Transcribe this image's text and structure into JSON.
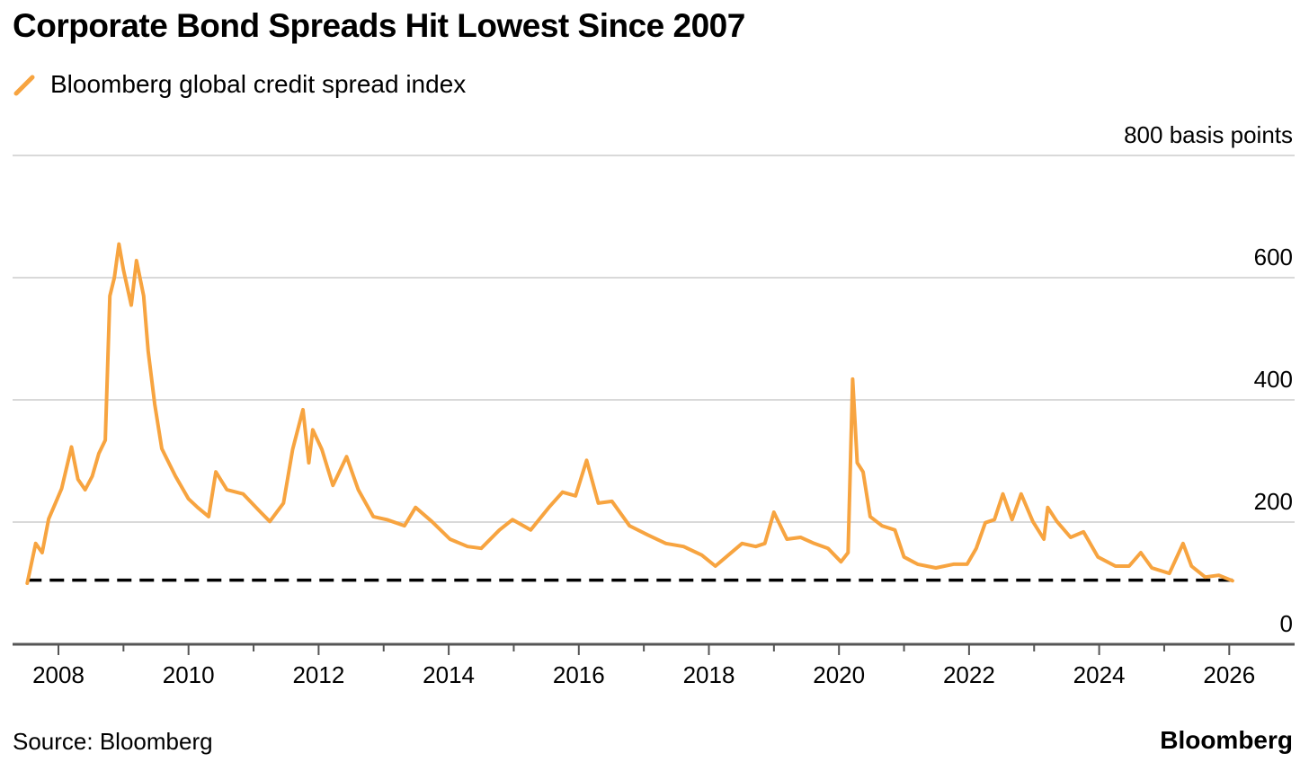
{
  "chart_data": {
    "type": "line",
    "title": "Corporate Bond Spreads Hit Lowest Since 2007",
    "xlabel": "",
    "ylabel": "basis points",
    "ylim": [
      0,
      800
    ],
    "xlim": [
      2007.4,
      2026.8
    ],
    "y_ticks": [
      {
        "value": 0,
        "label": "0"
      },
      {
        "value": 200,
        "label": "200"
      },
      {
        "value": 400,
        "label": "400"
      },
      {
        "value": 600,
        "label": "600"
      },
      {
        "value": 800,
        "label": "800 basis points"
      }
    ],
    "x_ticks": [
      {
        "value": 2008,
        "label": "2008"
      },
      {
        "value": 2010,
        "label": "2010"
      },
      {
        "value": 2012,
        "label": "2012"
      },
      {
        "value": 2014,
        "label": "2014"
      },
      {
        "value": 2016,
        "label": "2016"
      },
      {
        "value": 2018,
        "label": "2018"
      },
      {
        "value": 2020,
        "label": "2020"
      },
      {
        "value": 2022,
        "label": "2022"
      },
      {
        "value": 2024,
        "label": "2024"
      },
      {
        "value": 2026,
        "label": "2026"
      }
    ],
    "grid": true,
    "legend_position": "top-left",
    "reference_line": {
      "value": 105,
      "style": "dashed",
      "color": "#000000"
    },
    "series": [
      {
        "name": "Bloomberg global credit spread index",
        "color": "#F7A440",
        "x": [
          2007.52,
          2007.65,
          2007.75,
          2007.85,
          2007.95,
          2008.05,
          2008.2,
          2008.3,
          2008.41,
          2008.52,
          2008.62,
          2008.72,
          2008.79,
          2008.86,
          2008.93,
          2009.0,
          2009.12,
          2009.2,
          2009.31,
          2009.38,
          2009.48,
          2009.59,
          2009.8,
          2010.0,
          2010.14,
          2010.31,
          2010.42,
          2010.59,
          2010.84,
          2011.11,
          2011.25,
          2011.46,
          2011.6,
          2011.76,
          2011.85,
          2011.91,
          2012.05,
          2012.22,
          2012.43,
          2012.61,
          2012.84,
          2013.05,
          2013.32,
          2013.49,
          2013.74,
          2014.02,
          2014.29,
          2014.5,
          2014.78,
          2014.98,
          2015.26,
          2015.54,
          2015.75,
          2015.95,
          2016.12,
          2016.3,
          2016.51,
          2016.78,
          2017.06,
          2017.34,
          2017.61,
          2017.89,
          2018.1,
          2018.3,
          2018.51,
          2018.72,
          2018.86,
          2019.0,
          2019.2,
          2019.41,
          2019.62,
          2019.83,
          2020.03,
          2020.14,
          2020.21,
          2020.28,
          2020.37,
          2020.48,
          2020.66,
          2020.86,
          2021.0,
          2021.21,
          2021.49,
          2021.76,
          2021.97,
          2022.11,
          2022.25,
          2022.39,
          2022.52,
          2022.66,
          2022.8,
          2022.98,
          2023.15,
          2023.21,
          2023.35,
          2023.56,
          2023.76,
          2023.98,
          2024.25,
          2024.46,
          2024.64,
          2024.81,
          2025.08,
          2025.29,
          2025.42,
          2025.63,
          2025.84,
          2026.05
        ],
        "values": [
          100,
          165,
          150,
          205,
          230,
          255,
          323,
          270,
          253,
          275,
          312,
          334,
          570,
          600,
          655,
          613,
          555,
          628,
          570,
          480,
          393,
          320,
          275,
          238,
          224,
          209,
          282,
          253,
          246,
          216,
          201,
          231,
          319,
          384,
          297,
          351,
          319,
          260,
          307,
          253,
          209,
          204,
          194,
          224,
          201,
          172,
          160,
          157,
          187,
          204,
          187,
          224,
          249,
          243,
          301,
          231,
          234,
          194,
          179,
          165,
          160,
          146,
          128,
          146,
          165,
          160,
          165,
          216,
          172,
          175,
          165,
          157,
          135,
          150,
          434,
          297,
          282,
          209,
          194,
          187,
          143,
          131,
          125,
          131,
          131,
          157,
          199,
          204,
          246,
          204,
          246,
          201,
          172,
          224,
          201,
          175,
          184,
          143,
          128,
          128,
          150,
          125,
          116,
          165,
          128,
          110,
          113,
          104
        ]
      }
    ]
  },
  "footer": {
    "source": "Source: Bloomberg",
    "brand": "Bloomberg"
  }
}
